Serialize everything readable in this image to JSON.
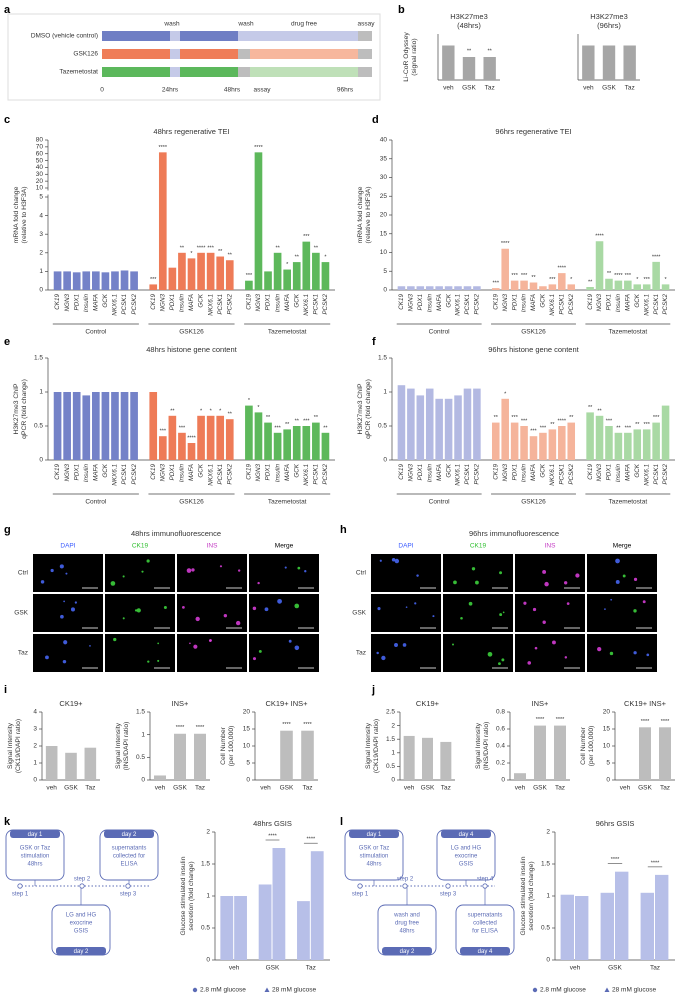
{
  "panel_labels": [
    "a",
    "b",
    "c",
    "d",
    "e",
    "f",
    "g",
    "h",
    "i",
    "j",
    "k",
    "l"
  ],
  "timeline": {
    "rows": [
      "DMSO (vehicle control)",
      "GSK126",
      "Tazemetostat"
    ],
    "top_labels": [
      "wash",
      "wash",
      "drug free",
      "assay"
    ],
    "bottom_labels": [
      "0",
      "24hrs",
      "48hrs",
      "assay",
      "96hrs"
    ]
  },
  "immunofluorescence": [
    {
      "title": "48hrs immunofluorescence",
      "columns": [
        "DAPI",
        "CK19",
        "INS",
        "Merge"
      ],
      "rows": [
        "Ctrl",
        "GSK",
        "Taz"
      ]
    },
    {
      "title": "96hrs immunofluorescence",
      "columns": [
        "DAPI",
        "CK19",
        "INS",
        "Merge"
      ],
      "rows": [
        "Ctrl",
        "GSK",
        "Taz"
      ]
    }
  ],
  "schematics": [
    {
      "boxes": [
        {
          "day": "day 1",
          "lines": [
            "GSK or Taz",
            "stimulation",
            "48hrs"
          ]
        },
        {
          "day": "day 2",
          "lines": [
            "supernatants",
            "collected for",
            "ELISA"
          ]
        },
        {
          "day": "day 2",
          "lines": [
            "LG and HG",
            "exocrine",
            "GSIS"
          ]
        }
      ],
      "steps": [
        "step 1",
        "step 2",
        "step 3"
      ]
    },
    {
      "boxes": [
        {
          "day": "day 1",
          "lines": [
            "GSK or Taz",
            "stimulation",
            "48hrs"
          ]
        },
        {
          "day": "day 4",
          "lines": [
            "LG and HG",
            "exocrine",
            "GSIS"
          ]
        },
        {
          "day": "day 2",
          "lines": [
            "wash and",
            "drug free",
            "48hrs"
          ]
        },
        {
          "day": "day 4",
          "lines": [
            "supernatants",
            "collected",
            "for ELISA"
          ]
        }
      ],
      "steps": [
        "step 1",
        "step 2",
        "step 3",
        "step 4"
      ]
    }
  ],
  "chart_data": [
    {
      "type": "bar",
      "title": [
        "H3K27me3",
        "(48hrs)"
      ],
      "ylabel": [
        "Li-CoR Odyssey",
        "(signal ratio)"
      ],
      "categories": [
        "veh",
        "GSK",
        "Taz"
      ],
      "values": [
        0.06,
        0.04,
        0.04
      ],
      "stars": [
        null,
        "**",
        "**"
      ],
      "color": "#a6a6a6",
      "ylim": [
        0,
        0.08
      ]
    },
    {
      "type": "bar",
      "title": [
        "H3K27me3",
        "(96hrs)"
      ],
      "categories": [
        "veh",
        "GSK",
        "Taz"
      ],
      "values": [
        0.06,
        0.06,
        0.06
      ],
      "color": "#a6a6a6",
      "ylim": [
        0,
        0.08
      ]
    },
    {
      "type": "gene_bar",
      "title": "48hrs regenerative TEI",
      "ylabel": [
        "mRNA fold change",
        "(relative to H3F3A)"
      ],
      "genes": [
        "CK19",
        "NGN3",
        "PDX1",
        "Insulin",
        "MAFA",
        "GCK",
        "NKX6.1",
        "PCSK1",
        "PCSK2"
      ],
      "groups": [
        {
          "name": "Control",
          "color": "#7482c8",
          "values": [
            1.0,
            1.0,
            0.95,
            1.0,
            1.0,
            0.95,
            1.0,
            1.05,
            1.0
          ]
        },
        {
          "name": "GSK126",
          "color": "#ee7b57",
          "values": [
            0.3,
            62,
            1.2,
            2.0,
            1.7,
            2.0,
            2.0,
            1.8,
            1.6
          ],
          "stars": [
            "***",
            "****",
            null,
            "**",
            "*",
            "****",
            "***",
            "**",
            "**"
          ]
        },
        {
          "name": "Tazemetostat",
          "color": "#5db85b",
          "values": [
            0.5,
            62,
            1.0,
            2.0,
            1.1,
            1.5,
            2.6,
            2.0,
            1.5
          ],
          "stars": [
            "***",
            "****",
            null,
            "**",
            "*",
            "**",
            "***",
            "**",
            "*"
          ]
        }
      ],
      "ylim": [
        0,
        80
      ],
      "axis_break": [
        5,
        10
      ],
      "yticks": [
        0,
        1,
        2,
        3,
        4,
        5,
        10,
        20,
        30,
        40,
        50,
        60,
        70,
        80
      ]
    },
    {
      "type": "gene_bar",
      "title": "96hrs regenerative TEI",
      "ylabel": [
        "mRNA fold change",
        "(relative to H3F3A)"
      ],
      "genes": [
        "CK19",
        "NGN3",
        "PDX1",
        "Insulin",
        "MAFA",
        "GCK",
        "NKX6.1",
        "PCSK1",
        "PCSK2"
      ],
      "groups": [
        {
          "name": "Control",
          "color": "#b3b9e2",
          "values": [
            1.0,
            1.0,
            1.0,
            1.0,
            1.0,
            1.0,
            1.0,
            1.0,
            1.0
          ]
        },
        {
          "name": "GSK126",
          "color": "#f5b49b",
          "values": [
            0.5,
            11,
            2.5,
            2.5,
            2.0,
            1.0,
            1.5,
            4.5,
            1.5
          ],
          "stars": [
            "***",
            "****",
            "***",
            "***",
            "**",
            null,
            "***",
            "****",
            "*"
          ]
        },
        {
          "name": "Tazemetostat",
          "color": "#a9d9a4",
          "values": [
            0.8,
            13,
            3.0,
            2.5,
            2.5,
            1.5,
            1.5,
            7.5,
            1.5
          ],
          "stars": [
            "**",
            "****",
            "**",
            "****",
            "***",
            "*",
            "***",
            "****",
            "*"
          ]
        }
      ],
      "ylim": [
        0,
        40
      ],
      "yticks": [
        0,
        5,
        10,
        15,
        20,
        25,
        30,
        35,
        40
      ]
    },
    {
      "type": "gene_bar",
      "title": "48hrs histone gene content",
      "ylabel": [
        "H3K27me3 ChIP",
        "qPCR (fold change)"
      ],
      "genes": [
        "CK19",
        "NGN3",
        "PDX1",
        "Insulin",
        "MAFA",
        "GCK",
        "NKX6.1",
        "PCSK1",
        "PCSK2"
      ],
      "groups": [
        {
          "name": "Control",
          "color": "#7482c8",
          "values": [
            1.0,
            1.0,
            1.0,
            0.95,
            1.0,
            1.0,
            1.0,
            1.0,
            1.0
          ]
        },
        {
          "name": "GSK126",
          "color": "#ee7b57",
          "values": [
            1.0,
            0.35,
            0.65,
            0.4,
            0.25,
            0.65,
            0.65,
            0.65,
            0.6
          ],
          "stars": [
            null,
            "***",
            "**",
            "***",
            "****",
            "*",
            "*",
            "*",
            "**"
          ]
        },
        {
          "name": "Tazemetostat",
          "color": "#5db85b",
          "values": [
            0.8,
            0.7,
            0.55,
            0.4,
            0.45,
            0.5,
            0.5,
            0.55,
            0.4
          ],
          "stars": [
            "*",
            "*",
            "**",
            "***",
            "**",
            "**",
            "***",
            "**",
            "**"
          ]
        }
      ],
      "ylim": [
        0,
        1.5
      ],
      "yticks": [
        0,
        0.5,
        1,
        1.5
      ]
    },
    {
      "type": "gene_bar",
      "title": "96hrs histone gene content",
      "ylabel": [
        "H3K27me3 ChIP",
        "qPCR (fold change)"
      ],
      "genes": [
        "CK19",
        "NGN3",
        "PDX1",
        "Insulin",
        "MAFA",
        "GCK",
        "NKX6.1",
        "PCSK1",
        "PCSK2"
      ],
      "groups": [
        {
          "name": "Control",
          "color": "#b3b9e2",
          "values": [
            1.1,
            1.05,
            0.95,
            1.05,
            0.9,
            0.9,
            0.95,
            1.05,
            1.05
          ]
        },
        {
          "name": "GSK126",
          "color": "#f5b49b",
          "values": [
            0.55,
            0.9,
            0.55,
            0.5,
            0.35,
            0.4,
            0.45,
            0.5,
            0.55
          ],
          "stars": [
            "**",
            "*",
            "***",
            "***",
            "***",
            "***",
            "**",
            "****",
            "**"
          ]
        },
        {
          "name": "Tazemetostat",
          "color": "#a9d9a4",
          "values": [
            0.7,
            0.65,
            0.5,
            0.4,
            0.4,
            0.45,
            0.45,
            0.55,
            0.8
          ],
          "stars": [
            "**",
            "**",
            "***",
            "**",
            "***",
            "**",
            "***",
            "***",
            null
          ]
        }
      ],
      "ylim": [
        0,
        1.5
      ],
      "yticks": [
        0,
        0.5,
        1,
        1.5
      ]
    },
    {
      "type": "bar",
      "title": "CK19+",
      "ylabel": [
        "Signal Intensity",
        "(CK19/DAPI ratio)"
      ],
      "categories": [
        "veh",
        "GSK",
        "Taz"
      ],
      "values": [
        2.0,
        1.6,
        1.9
      ],
      "color": "#bdbdbd",
      "ylim": [
        0,
        4
      ],
      "yticks": [
        0,
        1,
        2,
        3,
        4
      ]
    },
    {
      "type": "bar",
      "title": "INS+",
      "ylabel": [
        "Signal Intensity",
        "(INS/DAPI ratio)"
      ],
      "categories": [
        "veh",
        "GSK",
        "Taz"
      ],
      "values": [
        0.1,
        1.02,
        1.02
      ],
      "stars": [
        null,
        "****",
        "****"
      ],
      "color": "#bdbdbd",
      "ylim": [
        0,
        1.5
      ],
      "yticks": [
        0,
        0.5,
        1,
        1.5
      ]
    },
    {
      "type": "bar",
      "title": "CK19+ INS+",
      "ylabel": [
        "Cell Number",
        "(per 100,000)"
      ],
      "categories": [
        "veh",
        "GSK",
        "Taz"
      ],
      "values": [
        0,
        14.5,
        14.5
      ],
      "stars": [
        null,
        "****",
        "****"
      ],
      "color": "#bdbdbd",
      "ylim": [
        0,
        20
      ],
      "yticks": [
        0,
        5,
        10,
        15,
        20
      ]
    },
    {
      "type": "bar",
      "title": "CK19+",
      "ylabel": [
        "Signal Intensity",
        "(CK19/DAPI ratio)"
      ],
      "categories": [
        "veh",
        "GSK",
        "Taz"
      ],
      "values": [
        1.62,
        1.55,
        1.4
      ],
      "color": "#bdbdbd",
      "ylim": [
        0,
        2.5
      ],
      "yticks": [
        0,
        0.5,
        1,
        1.5,
        2,
        2.5
      ]
    },
    {
      "type": "bar",
      "title": "INS+",
      "ylabel": [
        "Signal Intensity",
        "(INS/DAPI ratio)"
      ],
      "categories": [
        "veh",
        "GSK",
        "Taz"
      ],
      "values": [
        0.08,
        0.64,
        0.64
      ],
      "stars": [
        null,
        "****",
        "****"
      ],
      "color": "#bdbdbd",
      "ylim": [
        0,
        0.8
      ],
      "yticks": [
        0,
        0.2,
        0.4,
        0.6,
        0.8
      ]
    },
    {
      "type": "bar",
      "title": "CK19+ INS+",
      "ylabel": [
        "Cell Number",
        "(per 100,000)"
      ],
      "categories": [
        "veh",
        "GSK",
        "Taz"
      ],
      "values": [
        0,
        15.5,
        15.5
      ],
      "stars": [
        null,
        "****",
        "****"
      ],
      "color": "#bdbdbd",
      "ylim": [
        0,
        20
      ],
      "yticks": [
        0,
        5,
        10,
        15,
        20
      ]
    },
    {
      "type": "grouped_bar",
      "title": "48hrs GSIS",
      "ylabel": [
        "Glucose stimulated insulin",
        "secretion (fold change)"
      ],
      "categories": [
        "veh",
        "GSK",
        "Taz"
      ],
      "series": [
        {
          "name": "2.8 mM glucose",
          "color": "#b7bfe8",
          "marker": "circle",
          "values": [
            1.0,
            1.18,
            0.92
          ]
        },
        {
          "name": "28 mM glucose",
          "color": "#b7bfe8",
          "marker": "triangle",
          "values": [
            1.0,
            1.75,
            1.7
          ]
        }
      ],
      "stars": [
        null,
        "****",
        "****"
      ],
      "ylim": [
        0,
        2
      ],
      "yticks": [
        0,
        0.5,
        1,
        1.5,
        2
      ],
      "legend": "bottom"
    },
    {
      "type": "grouped_bar",
      "title": "96hrs GSIS",
      "ylabel": [
        "Glucose stimulated insulin",
        "secretion (fold change)"
      ],
      "categories": [
        "veh",
        "GSK",
        "Taz"
      ],
      "series": [
        {
          "name": "2.8 mM glucose",
          "color": "#b7bfe8",
          "marker": "circle",
          "values": [
            1.02,
            1.05,
            1.05
          ]
        },
        {
          "name": "28 mM glucose",
          "color": "#b7bfe8",
          "marker": "triangle",
          "values": [
            1.0,
            1.38,
            1.33
          ]
        }
      ],
      "stars": [
        null,
        "****",
        "****"
      ],
      "ylim": [
        0,
        2
      ],
      "yticks": [
        0,
        0.5,
        1,
        1.5,
        2
      ],
      "legend": "bottom"
    }
  ]
}
